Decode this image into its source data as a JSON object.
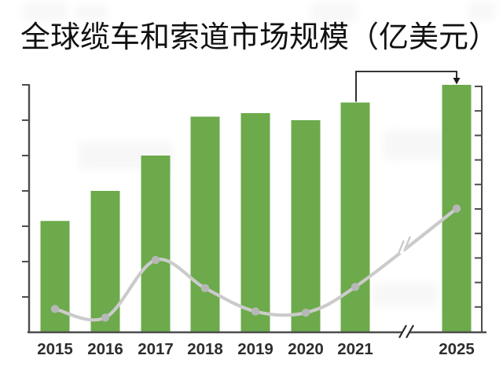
{
  "chart_data": {
    "type": "bar",
    "title": "全球缆车和索道市场规模（亿美元）",
    "categories": [
      "2015",
      "2016",
      "2017",
      "2018",
      "2019",
      "2020",
      "2021",
      "2025"
    ],
    "series": [
      {
        "name": "market-size-bars",
        "type": "bar",
        "axis": "left",
        "values": [
          3.15,
          4.0,
          5.0,
          6.1,
          6.2,
          6.0,
          6.5,
          7.0
        ]
      },
      {
        "name": "trend-line",
        "type": "line",
        "axis": "right",
        "values": [
          0.95,
          0.6,
          2.95,
          1.8,
          0.85,
          0.8,
          1.85,
          5.05
        ]
      }
    ],
    "left_axis": {
      "numeric_labels_visible": false,
      "tick_count": 7,
      "ylim": [
        0,
        7
      ],
      "grid": false
    },
    "right_axis": {
      "numeric_labels_visible": false,
      "tick_count": 10,
      "ylim": [
        0,
        10
      ],
      "grid": false
    },
    "x_axis": {
      "break_between": [
        "2021",
        "2025"
      ]
    },
    "annotations": [
      {
        "type": "arrow",
        "from_category": "2021",
        "to_category": "2025"
      }
    ],
    "legend": {
      "visible": false
    },
    "colors": {
      "bar": "#6CAA4B",
      "line": "#CBCBCB",
      "marker": "#B7B7B7",
      "axis": "#4D4D4D",
      "tick_label": "#2D2D2D",
      "title": "#111111",
      "annotation": "#1A1A1A",
      "background": "#FFFFFF"
    }
  }
}
